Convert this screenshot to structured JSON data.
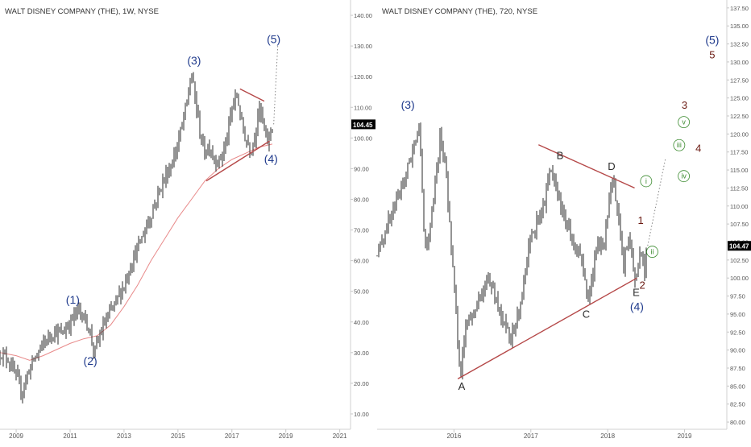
{
  "panels": [
    {
      "id": "left",
      "title": "WALT DISNEY COMPANY (THE), 1W, NYSE",
      "chart_data": {
        "type": "line",
        "title": "WALT DISNEY COMPANY (THE), 1W, NYSE",
        "xlabel": "",
        "ylabel": "",
        "x_ticks": [
          "2009",
          "2011",
          "2013",
          "2015",
          "2017",
          "2019",
          "2021"
        ],
        "y_ticks": [
          "10.00",
          "20.00",
          "30.00",
          "40.00",
          "50.00",
          "60.00",
          "70.00",
          "80.00",
          "90.00",
          "100.00",
          "110.00",
          "120.00",
          "130.00",
          "140.00"
        ],
        "ylim": [
          5,
          145
        ],
        "xlim": [
          2008.4,
          2021.4
        ],
        "last_price": "104.45",
        "series": [
          {
            "x": [
              2008.4,
              2008.7,
              2009.0,
              2009.2,
              2009.5,
              2009.8,
              2010.1,
              2010.4,
              2010.7,
              2011.0,
              2011.3,
              2011.5,
              2011.7,
              2011.9,
              2012.2,
              2012.6,
              2013.0,
              2013.3,
              2013.6,
              2014.0,
              2014.4,
              2014.8,
              2015.1,
              2015.3,
              2015.5,
              2015.7,
              2015.85,
              2016.0,
              2016.15,
              2016.3,
              2016.5,
              2016.7,
              2016.85,
              2017.0,
              2017.2,
              2017.35,
              2017.5,
              2017.7,
              2017.85,
              2018.0,
              2018.15,
              2018.3,
              2018.45,
              2018.55
            ],
            "values": [
              30,
              28,
              22,
              17,
              25,
              30,
              34,
              37,
              36,
              40,
              44,
              42,
              38,
              30,
              38,
              45,
              52,
              60,
              66,
              75,
              85,
              92,
              102,
              110,
              121,
              109,
              100,
              95,
              98,
              94,
              92,
              96,
              101,
              110,
              114,
              105,
              100,
              96,
              101,
              110,
              105,
              98,
              103,
              104.45
            ]
          },
          {
            "x": [
              2008.4,
              2009.0,
              2009.5,
              2010.0,
              2010.5,
              2011.0,
              2011.5,
              2012.0,
              2012.5,
              2013.0,
              2013.5,
              2014.0,
              2014.5,
              2015.0,
              2015.5,
              2016.0,
              2016.5,
              2017.0,
              2017.5,
              2018.0,
              2018.5
            ],
            "values": [
              30,
              29,
              27.5,
              29,
              31,
              33,
              34.5,
              35.5,
              39,
              45,
              52,
              60,
              67,
              74,
              80,
              86,
              90,
              93,
              95,
              97,
              98
            ]
          }
        ],
        "annotations": [
          {
            "text": "(1)",
            "x": 2011.1,
            "y": 46
          },
          {
            "text": "(2)",
            "x": 2011.75,
            "y": 26
          },
          {
            "text": "(3)",
            "x": 2015.6,
            "y": 124
          },
          {
            "text": "(4)",
            "x": 2018.45,
            "y": 92
          },
          {
            "text": "(5)",
            "x": 2018.55,
            "y": 131
          }
        ],
        "trendlines": [
          {
            "x": [
              2016.05,
              2018.4
            ],
            "values": [
              86,
              99
            ]
          },
          {
            "x": [
              2017.3,
              2018.2
            ],
            "values": [
              116,
              112
            ]
          }
        ],
        "projection": {
          "x": [
            2018.55,
            2018.7
          ],
          "values": [
            104.45,
            130
          ]
        }
      }
    },
    {
      "id": "right",
      "title": "WALT DISNEY COMPANY (THE), 720, NYSE",
      "chart_data": {
        "type": "line",
        "title": "WALT DISNEY COMPANY (THE), 720, NYSE",
        "xlabel": "",
        "ylabel": "",
        "x_ticks": [
          "2016",
          "2017",
          "2018",
          "2019"
        ],
        "y_ticks": [
          "80.00",
          "82.50",
          "85.00",
          "87.50",
          "90.00",
          "92.50",
          "95.00",
          "97.50",
          "100.00",
          "102.50",
          "105.00",
          "107.50",
          "110.00",
          "112.50",
          "115.00",
          "117.50",
          "120.00",
          "122.50",
          "125.00",
          "127.50",
          "130.00",
          "132.50",
          "135.00",
          "137.50"
        ],
        "ylim": [
          79,
          138.6
        ],
        "xlim": [
          2015.0,
          2019.55
        ],
        "last_price": "104.47",
        "series": [
          {
            "x": [
              2015.0,
              2015.15,
              2015.3,
              2015.45,
              2015.55,
              2015.62,
              2015.72,
              2015.82,
              2015.9,
              2016.0,
              2016.08,
              2016.15,
              2016.3,
              2016.45,
              2016.6,
              2016.75,
              2016.85,
              2017.0,
              2017.15,
              2017.25,
              2017.35,
              2017.45,
              2017.55,
              2017.65,
              2017.75,
              2017.85,
              2017.95,
              2018.05,
              2018.12,
              2018.2,
              2018.28,
              2018.35,
              2018.42,
              2018.48,
              2018.52
            ],
            "values": [
              103,
              108,
              112,
              117,
              122,
              104,
              109,
              120,
              114,
              99,
              86,
              93,
              96,
              100,
              95,
              92,
              95,
              106,
              109,
              115,
              112,
              108,
              105,
              103,
              97,
              104,
              105,
              113,
              111,
              101,
              107,
              99,
              104,
              101,
              104.47
            ]
          }
        ],
        "annotations": [
          {
            "text": "(3)",
            "x": 2015.4,
            "y": 123.5
          },
          {
            "text": "A",
            "x": 2016.1,
            "y": 84.5
          },
          {
            "text": "B",
            "x": 2017.38,
            "y": 116.5
          },
          {
            "text": "C",
            "x": 2017.72,
            "y": 94.5
          },
          {
            "text": "D",
            "x": 2018.05,
            "y": 115
          },
          {
            "text": "E",
            "x": 2018.37,
            "y": 97.5
          },
          {
            "text": "(4)",
            "x": 2018.38,
            "y": 95.5
          },
          {
            "text": "1",
            "x": 2018.43,
            "y": 107.5
          },
          {
            "text": "2",
            "x": 2018.45,
            "y": 98.5
          },
          {
            "text": "3",
            "x": 2019.0,
            "y": 123.5
          },
          {
            "text": "4",
            "x": 2019.18,
            "y": 117.5
          },
          {
            "text": "5",
            "x": 2019.36,
            "y": 130.5
          },
          {
            "text": "(5)",
            "x": 2019.36,
            "y": 132.5
          },
          {
            "text": "i",
            "x": 2018.5,
            "y": 113
          },
          {
            "text": "ii",
            "x": 2018.58,
            "y": 103.2
          },
          {
            "text": "iii",
            "x": 2018.93,
            "y": 118
          },
          {
            "text": "iv",
            "x": 2018.99,
            "y": 113.7
          },
          {
            "text": "v",
            "x": 2018.99,
            "y": 121.2
          }
        ],
        "trendlines": [
          {
            "x": [
              2016.05,
              2018.38
            ],
            "values": [
              86,
              100
            ]
          },
          {
            "x": [
              2017.1,
              2018.35
            ],
            "values": [
              118.5,
              112.5
            ]
          }
        ],
        "projection": {
          "x": [
            2018.52,
            2018.75
          ],
          "values": [
            104.47,
            116.5
          ]
        }
      }
    }
  ],
  "colors": {
    "bars": "#2a2a2a",
    "moving_average": "#e88a8a",
    "trendline": "#b54848",
    "wave_label": "#1f3a8c",
    "letter_label": "#2b2b2b",
    "impulse_label": "#6b1a12",
    "subwave_label": "#3a8a2e",
    "projection": "#888888",
    "price_tag_bg": "#000000",
    "price_tag_text": "#ffffff",
    "axis_text": "#555555",
    "grid": "#e6e6e6"
  }
}
